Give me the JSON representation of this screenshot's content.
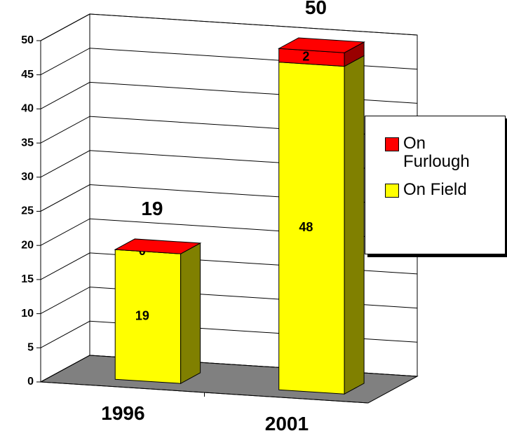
{
  "chart_data": {
    "type": "bar3d_stacked",
    "categories": [
      "1996",
      "2001"
    ],
    "series": [
      {
        "name": "On Field",
        "color": "#ffff00",
        "side_color": "#808000",
        "values": [
          19,
          48
        ]
      },
      {
        "name": "On Furlough",
        "color": "#ff0000",
        "side_color": "#990000",
        "values": [
          0,
          2
        ]
      }
    ],
    "totals": [
      19,
      50
    ],
    "ylim": [
      0,
      50
    ],
    "yticks": [
      0,
      5,
      10,
      15,
      20,
      25,
      30,
      35,
      40,
      45,
      50
    ],
    "grid": true,
    "legend": "right"
  }
}
